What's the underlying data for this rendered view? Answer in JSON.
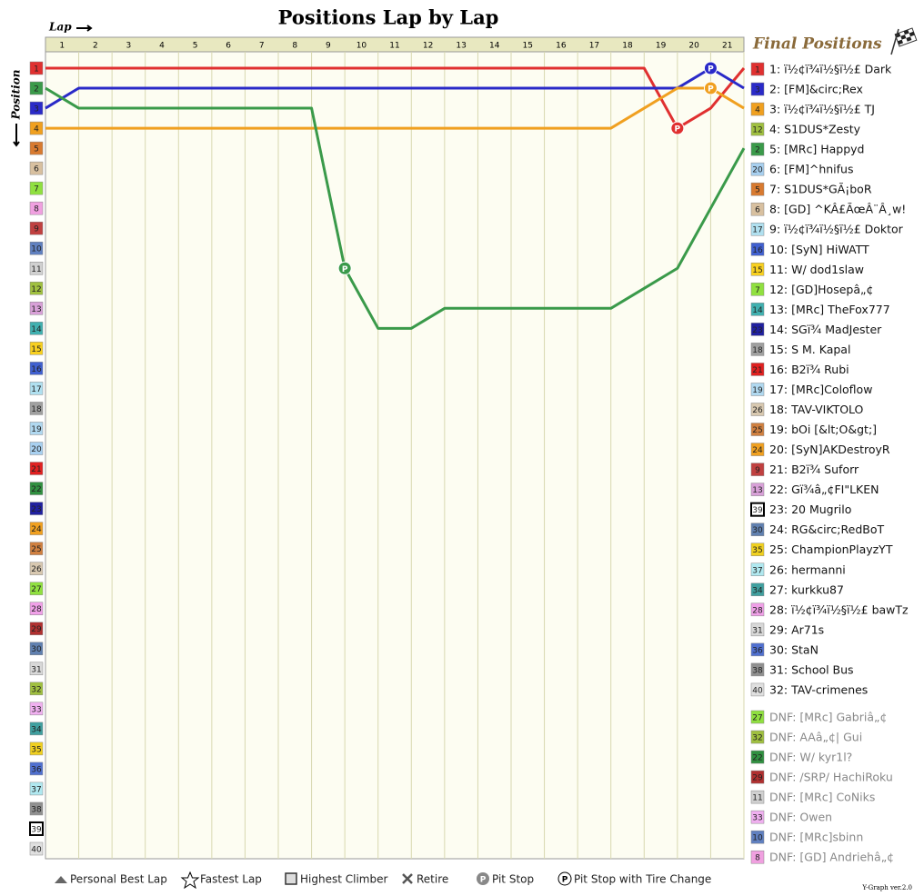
{
  "chart_data": {
    "type": "line",
    "title": "Positions Lap by Lap",
    "x_label": "Lap",
    "y_label": "Position",
    "final_title": "Final Positions",
    "pit_symbol": "P",
    "version": "Y-Graph ver.2.0",
    "x": [
      0,
      1,
      2,
      3,
      4,
      5,
      6,
      7,
      8,
      9,
      10,
      11,
      12,
      13,
      14,
      15,
      16,
      17,
      18,
      19,
      20,
      21
    ],
    "xlim": [
      0,
      21
    ],
    "xticks": [
      1,
      2,
      3,
      4,
      5,
      6,
      7,
      8,
      9,
      10,
      11,
      12,
      13,
      14,
      15,
      16,
      17,
      18,
      19,
      20,
      21
    ],
    "ylim": [
      1,
      40
    ],
    "yticks": [
      1,
      2,
      3,
      4,
      5,
      6,
      7,
      8,
      9,
      10,
      11,
      12,
      13,
      14,
      15,
      16,
      17,
      18,
      19,
      20,
      21,
      22,
      23,
      24,
      25,
      26,
      27,
      28,
      29,
      30,
      31,
      32,
      33,
      34,
      35,
      36,
      37,
      38,
      39,
      40
    ],
    "ytick_colors": [
      "#e03030",
      "#3a9a4a",
      "#2a2ac8",
      "#f0a020",
      "#d87a30",
      "#d8c0a0",
      "#90e040",
      "#f0a0e0",
      "#c04040",
      "#6080c0",
      "#d0d0d0",
      "#a0c040",
      "#d8a0d8",
      "#40b0b0",
      "#f8d020",
      "#4060d0",
      "#b0e0f0",
      "#a0a0a0",
      "#b0d8f0",
      "#a8d0f0",
      "#e02020",
      "#309040",
      "#2020a0",
      "#f0a020",
      "#d08040",
      "#d8c8b0",
      "#90e040",
      "#f0a0e8",
      "#b03030",
      "#6080b0",
      "#d8d8d8",
      "#a0c040",
      "#f0b0f0",
      "#40a0a0",
      "#f0d020",
      "#5070d0",
      "#b0e8f0",
      "#909090",
      "#ffffff",
      "#e0e0e0"
    ],
    "legend": [
      "Personal Best Lap",
      "Fastest Lap",
      "Highest Climber",
      "Retire",
      "Pit Stop",
      "Pit Stop with Tire Change"
    ],
    "series": [
      {
        "name": "1: ï½¢ï¾ï½§ï½£ Dark",
        "start": 1,
        "color": "#e03030",
        "values": [
          1,
          1,
          1,
          1,
          1,
          1,
          1,
          1,
          1,
          1,
          1,
          1,
          1,
          1,
          1,
          1,
          1,
          1,
          1,
          4,
          3,
          1
        ],
        "pits": [
          19
        ]
      },
      {
        "name": "2: [FM]&circ;Rex",
        "start": 3,
        "color": "#2a2ac8",
        "values": [
          3,
          2,
          2,
          2,
          2,
          2,
          2,
          2,
          2,
          2,
          2,
          2,
          2,
          2,
          2,
          2,
          2,
          2,
          2,
          2,
          1,
          2
        ],
        "pits": [
          20
        ]
      },
      {
        "name": "3: ï½¢ï¾ï½§ï½£ TJ",
        "start": 4,
        "color": "#f0a020",
        "values": [
          4,
          4,
          4,
          4,
          4,
          4,
          4,
          4,
          4,
          4,
          4,
          4,
          4,
          4,
          4,
          4,
          4,
          4,
          3,
          2,
          2,
          3
        ],
        "pits": [
          20
        ]
      },
      {
        "name": "4: S1DUS*Zesty",
        "start": 12,
        "color": "#a0c040"
      },
      {
        "name": "5: [MRc] Happyd",
        "start": 2,
        "color": "#3a9a4a",
        "values": [
          2,
          3,
          3,
          3,
          3,
          3,
          3,
          3,
          3,
          11,
          14,
          14,
          13,
          13,
          13,
          13,
          13,
          13,
          12,
          11,
          8,
          5
        ],
        "pits": [
          9
        ]
      },
      {
        "name": "6: [FM]^hnifus",
        "start": 20,
        "color": "#a8d0f0"
      },
      {
        "name": "7: S1DUS*GÃ¡boR",
        "start": 5,
        "color": "#d87a30"
      },
      {
        "name": "8: [GD] ^KÂ£ÃœÂ¨Â¸w!",
        "start": 6,
        "color": "#d8c0a0"
      },
      {
        "name": "9: ï½¢ï¾ï½§ï½£ Doktor",
        "start": 17,
        "color": "#b0e0f0"
      },
      {
        "name": "10: [SyN] HiWATT",
        "start": 16,
        "color": "#4060d0"
      },
      {
        "name": "11: W/ dod1slaw",
        "start": 15,
        "color": "#f8d020"
      },
      {
        "name": "12: [GD]Hosepâ„¢",
        "start": 7,
        "color": "#90e040"
      },
      {
        "name": "13: [MRc] TheFox777",
        "start": 14,
        "color": "#40b0b0"
      },
      {
        "name": "14: SGï¾ MadJester",
        "start": 23,
        "color": "#2020a0"
      },
      {
        "name": "15: S M. Kapal",
        "start": 18,
        "color": "#a0a0a0"
      },
      {
        "name": "16: B2ï¾ Rubi",
        "start": 21,
        "color": "#e02020"
      },
      {
        "name": "17: [MRc]Coloflow",
        "start": 19,
        "color": "#b0d8f0"
      },
      {
        "name": "18: TAV-VIKTOLO",
        "start": 26,
        "color": "#d8c8b0"
      },
      {
        "name": "19: bOi [&lt;O&gt;]",
        "start": 25,
        "color": "#d08040"
      },
      {
        "name": "20: [SyN]AKDestroyR",
        "start": 24,
        "color": "#f0a020"
      },
      {
        "name": "21: B2ï¾ Suforr",
        "start": 9,
        "color": "#c04040"
      },
      {
        "name": "22: Gï¾â„¢FI\"LKEN",
        "start": 13,
        "color": "#d8a0d8"
      },
      {
        "name": "23: 20 Mugrilo",
        "start": 39,
        "color": "#ffffff"
      },
      {
        "name": "24: RG&circ;RedBoT",
        "start": 30,
        "color": "#6080b0"
      },
      {
        "name": "25: ChampionPlayzYT",
        "start": 35,
        "color": "#f0d020"
      },
      {
        "name": "26: hermanni",
        "start": 37,
        "color": "#b0e8f0"
      },
      {
        "name": "27: kurkku87",
        "start": 34,
        "color": "#40a0a0"
      },
      {
        "name": "28: ï½¢ï¾ï½§ï½£ bawTz",
        "start": 28,
        "color": "#f0a0e8"
      },
      {
        "name": "29: Ar71s",
        "start": 31,
        "color": "#d8d8d8"
      },
      {
        "name": "30: StaN",
        "start": 36,
        "color": "#5070d0"
      },
      {
        "name": "31: School Bus",
        "start": 38,
        "color": "#909090"
      },
      {
        "name": "32: TAV-crimenes",
        "start": 40,
        "color": "#e0e0e0"
      },
      {
        "name": "DNF: [MRc] Gabriâ„¢",
        "start": 27,
        "color": "#90e040"
      },
      {
        "name": "DNF: AAâ„¢| Gui",
        "start": 32,
        "color": "#a0c040"
      },
      {
        "name": "DNF: W/ kyr1l?",
        "start": 22,
        "color": "#309040"
      },
      {
        "name": "DNF: /SRP/ HachiRoku",
        "start": 29,
        "color": "#b03030"
      },
      {
        "name": "DNF: [MRc] CoNiks",
        "start": 11,
        "color": "#d0d0d0"
      },
      {
        "name": "DNF: Owen",
        "start": 33,
        "color": "#f0b0f0"
      },
      {
        "name": "DNF: [MRc]sbinn",
        "start": 10,
        "color": "#6080c0"
      },
      {
        "name": "DNF: [GD] Andriehâ„¢",
        "start": 8,
        "color": "#f0a0e0"
      }
    ]
  }
}
